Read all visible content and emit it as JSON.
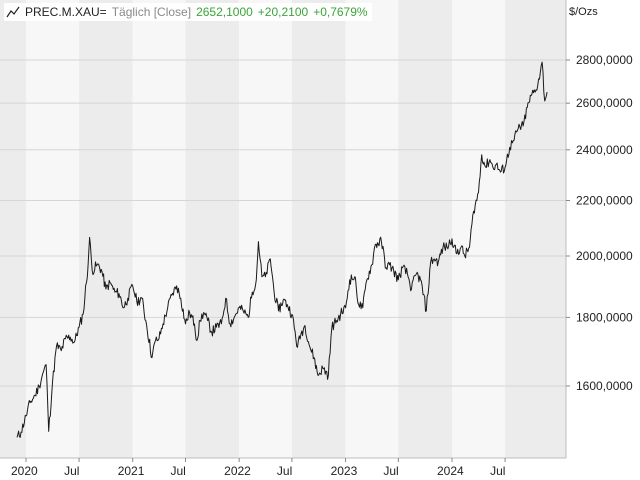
{
  "legend": {
    "symbol": "PREC.M.XAU=",
    "mode": "Täglich [Close]",
    "last": "2652,1000",
    "change": "+20,2100",
    "change_pct": "+0,7679%",
    "icon": "line-chart-icon"
  },
  "colors": {
    "line": "#1a1a1a",
    "band_dark": "#ececec",
    "band_light": "#f7f7f7",
    "grid": "#d6d6d6",
    "positive": "#3aa537"
  },
  "chart_data": {
    "type": "line",
    "ylabel": "$/Ozs",
    "y_scale": "log",
    "grid": true,
    "ylim": [
      1450,
      2900
    ],
    "xlim": [
      "2019-12-01",
      "2024-12-15"
    ],
    "y_ticks": [
      {
        "value": 1600,
        "label": "1600,0000"
      },
      {
        "value": 1800,
        "label": "1800,0000"
      },
      {
        "value": 2000,
        "label": "2000,0000"
      },
      {
        "value": 2200,
        "label": "2200,0000"
      },
      {
        "value": 2400,
        "label": "2400,0000"
      },
      {
        "value": 2600,
        "label": "2600,0000"
      },
      {
        "value": 2800,
        "label": "2800,0000"
      }
    ],
    "x_ticks": [
      {
        "date": "2020-01-01",
        "label": "2020"
      },
      {
        "date": "2020-07-01",
        "label": "Jul"
      },
      {
        "date": "2021-01-01",
        "label": "2021"
      },
      {
        "date": "2021-07-01",
        "label": "Jul"
      },
      {
        "date": "2022-01-01",
        "label": "2022"
      },
      {
        "date": "2022-07-01",
        "label": "Jul"
      },
      {
        "date": "2023-01-01",
        "label": "2023"
      },
      {
        "date": "2023-07-01",
        "label": "Jul"
      },
      {
        "date": "2024-01-01",
        "label": "2024"
      },
      {
        "date": "2024-07-01",
        "label": "Jul"
      }
    ],
    "series": [
      {
        "x": [
          "2019-12-01",
          "2019-12-15",
          "2020-01-01",
          "2020-01-15",
          "2020-02-01",
          "2020-02-15",
          "2020-03-01",
          "2020-03-10",
          "2020-03-19",
          "2020-04-01",
          "2020-04-15",
          "2020-05-01",
          "2020-05-15",
          "2020-06-01",
          "2020-06-15",
          "2020-07-01",
          "2020-07-15",
          "2020-08-01",
          "2020-08-06",
          "2020-08-15",
          "2020-09-01",
          "2020-09-15",
          "2020-10-01",
          "2020-10-15",
          "2020-11-01",
          "2020-11-15",
          "2020-12-01",
          "2020-12-15",
          "2021-01-01",
          "2021-01-15",
          "2021-02-01",
          "2021-02-15",
          "2021-03-08",
          "2021-03-20",
          "2021-04-01",
          "2021-04-15",
          "2021-05-01",
          "2021-05-15",
          "2021-06-01",
          "2021-06-15",
          "2021-07-01",
          "2021-07-15",
          "2021-08-01",
          "2021-08-09",
          "2021-08-20",
          "2021-09-01",
          "2021-09-15",
          "2021-09-29",
          "2021-10-15",
          "2021-11-01",
          "2021-11-16",
          "2021-12-01",
          "2021-12-15",
          "2022-01-01",
          "2022-01-15",
          "2022-02-01",
          "2022-02-15",
          "2022-03-01",
          "2022-03-08",
          "2022-03-20",
          "2022-04-01",
          "2022-04-18",
          "2022-05-01",
          "2022-05-16",
          "2022-06-01",
          "2022-06-15",
          "2022-07-01",
          "2022-07-20",
          "2022-08-01",
          "2022-08-15",
          "2022-09-01",
          "2022-09-15",
          "2022-09-28",
          "2022-10-15",
          "2022-11-03",
          "2022-11-15",
          "2022-12-01",
          "2022-12-15",
          "2023-01-01",
          "2023-01-15",
          "2023-02-01",
          "2023-02-15",
          "2023-03-01",
          "2023-03-15",
          "2023-04-01",
          "2023-04-13",
          "2023-05-04",
          "2023-05-20",
          "2023-06-01",
          "2023-06-15",
          "2023-07-01",
          "2023-07-15",
          "2023-08-01",
          "2023-08-15",
          "2023-09-01",
          "2023-09-15",
          "2023-10-05",
          "2023-10-20",
          "2023-11-01",
          "2023-11-15",
          "2023-12-01",
          "2023-12-15",
          "2024-01-01",
          "2024-01-15",
          "2024-02-01",
          "2024-02-14",
          "2024-03-01",
          "2024-03-15",
          "2024-04-01",
          "2024-04-12",
          "2024-04-25",
          "2024-05-10",
          "2024-05-20",
          "2024-06-01",
          "2024-06-15",
          "2024-07-01",
          "2024-07-17",
          "2024-08-01",
          "2024-08-15",
          "2024-09-01",
          "2024-09-15",
          "2024-10-01",
          "2024-10-15",
          "2024-10-30",
          "2024-11-05",
          "2024-11-14",
          "2024-11-22"
        ],
        "y": [
          1465,
          1478,
          1520,
          1555,
          1575,
          1600,
          1640,
          1660,
          1480,
          1610,
          1715,
          1700,
          1735,
          1740,
          1725,
          1770,
          1810,
          1970,
          2065,
          1950,
          1970,
          1955,
          1890,
          1910,
          1880,
          1875,
          1830,
          1860,
          1900,
          1850,
          1860,
          1790,
          1680,
          1730,
          1735,
          1780,
          1830,
          1870,
          1900,
          1860,
          1780,
          1815,
          1780,
          1730,
          1790,
          1815,
          1790,
          1755,
          1770,
          1780,
          1860,
          1780,
          1800,
          1830,
          1820,
          1800,
          1880,
          1920,
          2050,
          1930,
          1930,
          1990,
          1880,
          1820,
          1855,
          1840,
          1810,
          1710,
          1750,
          1775,
          1710,
          1680,
          1630,
          1650,
          1630,
          1770,
          1790,
          1810,
          1830,
          1920,
          1930,
          1840,
          1830,
          1920,
          1970,
          2040,
          2050,
          1960,
          1970,
          1950,
          1920,
          1960,
          1940,
          1890,
          1940,
          1920,
          1820,
          1980,
          1990,
          1980,
          2030,
          2030,
          2060,
          2010,
          2030,
          2000,
          2030,
          2160,
          2230,
          2380,
          2330,
          2360,
          2330,
          2340,
          2310,
          2330,
          2410,
          2440,
          2490,
          2500,
          2580,
          2640,
          2660,
          2740,
          2790,
          2610,
          2650
        ]
      }
    ]
  }
}
